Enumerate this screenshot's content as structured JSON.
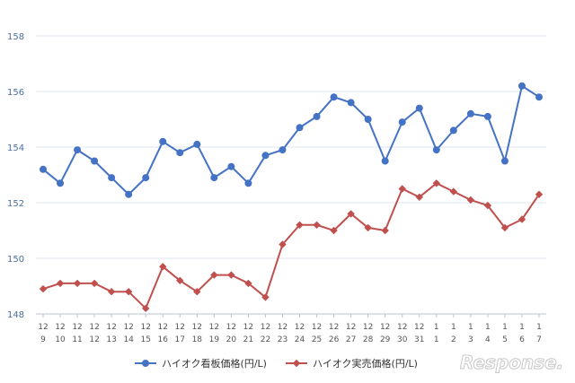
{
  "chart_data": {
    "type": "line",
    "categories": [
      [
        "12",
        "9"
      ],
      [
        "12",
        "10"
      ],
      [
        "12",
        "11"
      ],
      [
        "12",
        "12"
      ],
      [
        "12",
        "13"
      ],
      [
        "12",
        "14"
      ],
      [
        "12",
        "15"
      ],
      [
        "12",
        "16"
      ],
      [
        "12",
        "17"
      ],
      [
        "12",
        "18"
      ],
      [
        "12",
        "19"
      ],
      [
        "12",
        "20"
      ],
      [
        "12",
        "21"
      ],
      [
        "12",
        "22"
      ],
      [
        "12",
        "23"
      ],
      [
        "12",
        "24"
      ],
      [
        "12",
        "25"
      ],
      [
        "12",
        "26"
      ],
      [
        "12",
        "27"
      ],
      [
        "12",
        "28"
      ],
      [
        "12",
        "29"
      ],
      [
        "12",
        "30"
      ],
      [
        "12",
        "31"
      ],
      [
        "1",
        "1"
      ],
      [
        "1",
        "2"
      ],
      [
        "1",
        "3"
      ],
      [
        "1",
        "4"
      ],
      [
        "1",
        "5"
      ],
      [
        "1",
        "6"
      ],
      [
        "1",
        "7"
      ]
    ],
    "series": [
      {
        "name": "ハイオク看板価格(円/L)",
        "color": "#4472c4",
        "marker": "circle",
        "values": [
          153.2,
          152.7,
          153.9,
          153.5,
          152.9,
          152.3,
          152.9,
          154.2,
          153.8,
          154.1,
          152.9,
          153.3,
          152.7,
          153.7,
          153.9,
          154.7,
          155.1,
          155.8,
          155.6,
          155.0,
          153.5,
          154.9,
          155.4,
          153.9,
          154.6,
          155.2,
          155.1,
          153.5,
          156.2,
          155.8
        ]
      },
      {
        "name": "ハイオク実売価格(円/L)",
        "color": "#c0504d",
        "marker": "diamond",
        "values": [
          148.9,
          149.1,
          149.1,
          149.1,
          148.8,
          148.8,
          148.2,
          149.7,
          149.2,
          148.8,
          149.4,
          149.4,
          149.1,
          148.6,
          150.5,
          151.2,
          151.2,
          151.0,
          151.6,
          151.1,
          151.0,
          152.5,
          152.2,
          152.7,
          152.4,
          152.1,
          151.9,
          151.1,
          151.4,
          152.3
        ]
      }
    ],
    "yticks": [
      "148",
      "150",
      "152",
      "154",
      "156",
      "158"
    ],
    "ylim": [
      148,
      158
    ],
    "grid": true,
    "legend": "bottom-center"
  },
  "watermark": "Response."
}
